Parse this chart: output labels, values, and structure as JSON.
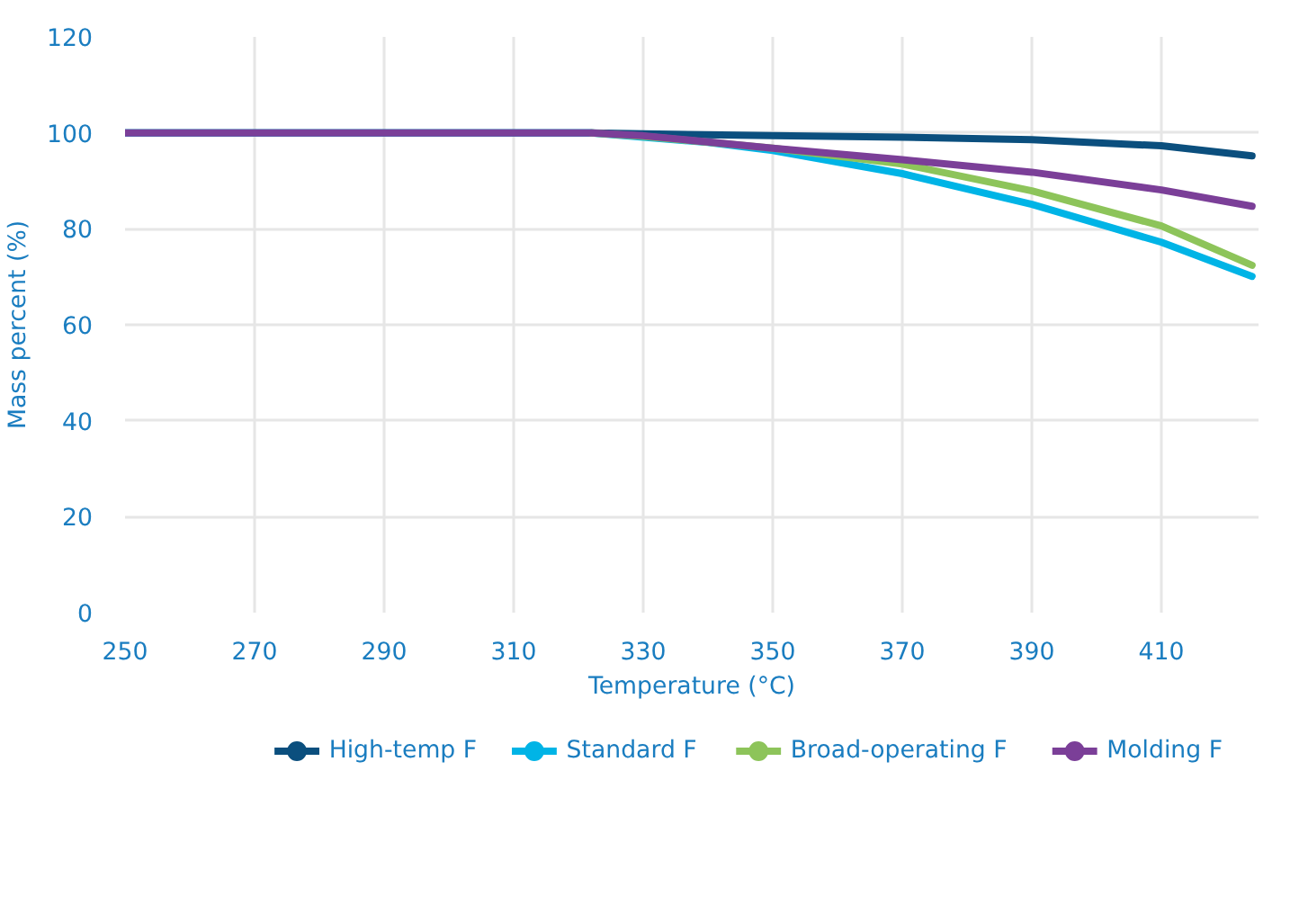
{
  "chart_data": {
    "type": "line",
    "xlabel": "Temperature (°C)",
    "ylabel": "Mass percent (%)",
    "xlim": [
      250,
      425
    ],
    "ylim": [
      0,
      120
    ],
    "xticks": [
      250,
      270,
      290,
      310,
      330,
      350,
      370,
      390,
      410
    ],
    "yticks": [
      0,
      20,
      40,
      60,
      80,
      100,
      120
    ],
    "grid": true,
    "legend": "bottom",
    "line_style": "solid",
    "series": [
      {
        "name": "High-temp F",
        "color": "#0b4f7e",
        "x": [
          250,
          322,
          330,
          350,
          370,
          390,
          410,
          424
        ],
        "values": [
          100,
          100,
          99.8,
          99.4,
          99.1,
          98.6,
          97.3,
          95.2
        ]
      },
      {
        "name": "Standard F",
        "color": "#00b4e6",
        "x": [
          250,
          322,
          330,
          340,
          350,
          370,
          390,
          410,
          424
        ],
        "values": [
          100,
          100,
          99.1,
          98.0,
          96.3,
          91.5,
          85.1,
          77.2,
          70.1
        ]
      },
      {
        "name": "Broad-operating F",
        "color": "#8dc45a",
        "x": [
          322,
          330,
          350,
          370,
          390,
          410,
          424
        ],
        "values": [
          100,
          99.3,
          96.8,
          93.5,
          87.9,
          80.6,
          72.4
        ]
      },
      {
        "name": "Molding F",
        "color": "#7b3f98",
        "x": [
          250,
          322,
          330,
          350,
          370,
          390,
          410,
          424
        ],
        "values": [
          100,
          100,
          99.4,
          96.8,
          94.4,
          91.8,
          88.1,
          84.7
        ]
      }
    ]
  }
}
